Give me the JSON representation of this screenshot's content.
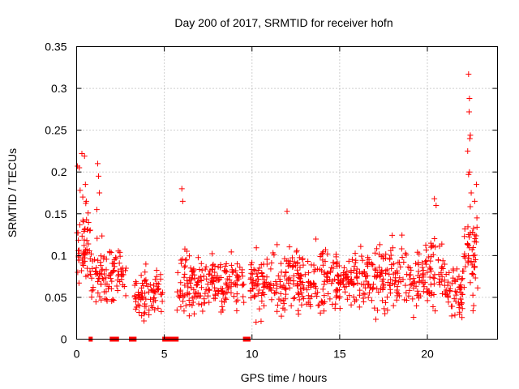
{
  "chart_data": {
    "type": "scatter",
    "title": "Day 200 of 2017, SRMTID for receiver hofn",
    "xlabel": "GPS time / hours",
    "ylabel": "SRMTID / TECUs",
    "xlim": [
      0,
      24
    ],
    "ylim": [
      0,
      0.35
    ],
    "xticks": [
      0,
      5,
      10,
      15,
      20
    ],
    "xtick_labels": [
      "0",
      "5",
      "10",
      "15",
      "20"
    ],
    "yticks": [
      0,
      0.05,
      0.1,
      0.15,
      0.2,
      0.25,
      0.3,
      0.35
    ],
    "ytick_labels": [
      "0",
      "0.05",
      "0.1",
      "0.15",
      "0.2",
      "0.25",
      "0.3",
      "0.35"
    ],
    "grid": true,
    "marker": "plus",
    "series_color": "#ff0000",
    "segments": [
      {
        "x0": 0.0,
        "x1": 0.8,
        "mean": 0.11,
        "spread": 0.04,
        "count": 55
      },
      {
        "x0": 0.8,
        "x1": 1.9,
        "mean": 0.08,
        "spread": 0.035,
        "count": 55
      },
      {
        "x0": 1.9,
        "x1": 2.9,
        "mean": 0.075,
        "spread": 0.03,
        "count": 45
      },
      {
        "x0": 3.3,
        "x1": 4.9,
        "mean": 0.055,
        "spread": 0.025,
        "count": 80
      },
      {
        "x0": 5.7,
        "x1": 7.5,
        "mean": 0.065,
        "spread": 0.03,
        "count": 95
      },
      {
        "x0": 7.5,
        "x1": 9.6,
        "mean": 0.068,
        "spread": 0.03,
        "count": 105
      },
      {
        "x0": 9.9,
        "x1": 12.0,
        "mean": 0.065,
        "spread": 0.03,
        "count": 110
      },
      {
        "x0": 12.0,
        "x1": 14.5,
        "mean": 0.075,
        "spread": 0.032,
        "count": 130
      },
      {
        "x0": 14.5,
        "x1": 16.5,
        "mean": 0.068,
        "spread": 0.03,
        "count": 110
      },
      {
        "x0": 16.5,
        "x1": 19.5,
        "mean": 0.072,
        "spread": 0.032,
        "count": 150
      },
      {
        "x0": 19.5,
        "x1": 21.0,
        "mean": 0.08,
        "spread": 0.035,
        "count": 75
      },
      {
        "x0": 21.0,
        "x1": 22.0,
        "mean": 0.055,
        "spread": 0.03,
        "count": 55
      },
      {
        "x0": 22.0,
        "x1": 22.9,
        "mean": 0.1,
        "spread": 0.045,
        "count": 55
      }
    ],
    "peak_points": [
      {
        "x": 0.05,
        "y": 0.207
      },
      {
        "x": 0.15,
        "y": 0.205
      },
      {
        "x": 0.2,
        "y": 0.178
      },
      {
        "x": 0.3,
        "y": 0.222
      },
      {
        "x": 0.35,
        "y": 0.17
      },
      {
        "x": 0.45,
        "y": 0.219
      },
      {
        "x": 0.5,
        "y": 0.185
      },
      {
        "x": 0.55,
        "y": 0.165
      },
      {
        "x": 1.2,
        "y": 0.21
      },
      {
        "x": 1.25,
        "y": 0.195
      },
      {
        "x": 1.3,
        "y": 0.175
      },
      {
        "x": 1.15,
        "y": 0.155
      },
      {
        "x": 6.0,
        "y": 0.18
      },
      {
        "x": 6.05,
        "y": 0.165
      },
      {
        "x": 12.0,
        "y": 0.153
      },
      {
        "x": 20.4,
        "y": 0.168
      },
      {
        "x": 20.5,
        "y": 0.16
      },
      {
        "x": 22.35,
        "y": 0.317
      },
      {
        "x": 22.4,
        "y": 0.288
      },
      {
        "x": 22.38,
        "y": 0.272
      },
      {
        "x": 22.45,
        "y": 0.244
      },
      {
        "x": 22.42,
        "y": 0.24
      },
      {
        "x": 22.3,
        "y": 0.225
      },
      {
        "x": 22.4,
        "y": 0.2
      },
      {
        "x": 22.35,
        "y": 0.197
      },
      {
        "x": 22.5,
        "y": 0.175
      },
      {
        "x": 22.8,
        "y": 0.185
      },
      {
        "x": 22.7,
        "y": 0.165
      }
    ],
    "zero_points_x": [
      0.8,
      2.0,
      2.1,
      2.3,
      3.1,
      3.3,
      5.0,
      5.1,
      5.2,
      5.3,
      5.5,
      5.6,
      5.7,
      9.6,
      9.7,
      9.8
    ]
  }
}
